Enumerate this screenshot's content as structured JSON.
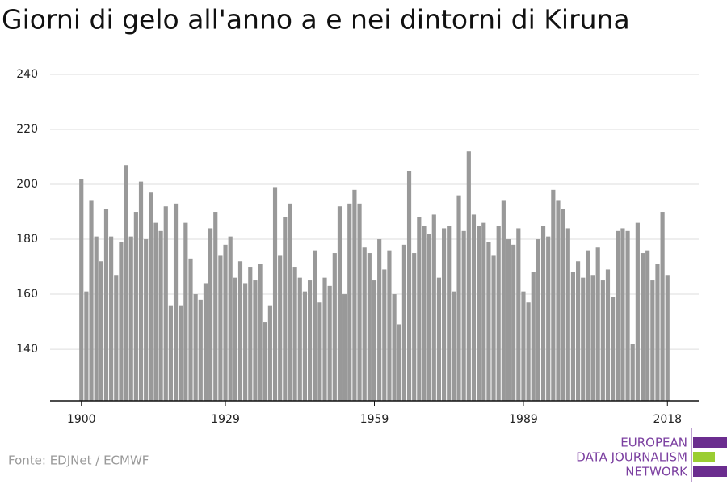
{
  "chart_data": {
    "type": "bar",
    "title": "Giorni di gelo all'anno a e nei dintorni di Kiruna",
    "source": "Fonte: EDJNet / ECMWF",
    "logo": [
      "EUROPEAN",
      "DATA JOURNALISM",
      "NETWORK"
    ],
    "color": "#999999",
    "grid": true,
    "x": [
      1900,
      1901,
      1902,
      1903,
      1904,
      1905,
      1906,
      1907,
      1908,
      1909,
      1910,
      1911,
      1912,
      1913,
      1914,
      1915,
      1916,
      1917,
      1918,
      1919,
      1920,
      1921,
      1922,
      1923,
      1924,
      1925,
      1926,
      1927,
      1928,
      1929,
      1930,
      1931,
      1932,
      1933,
      1934,
      1935,
      1936,
      1937,
      1938,
      1939,
      1940,
      1941,
      1942,
      1943,
      1944,
      1945,
      1946,
      1947,
      1948,
      1949,
      1950,
      1951,
      1952,
      1953,
      1954,
      1955,
      1956,
      1957,
      1958,
      1959,
      1960,
      1961,
      1962,
      1963,
      1964,
      1965,
      1966,
      1967,
      1968,
      1969,
      1970,
      1971,
      1972,
      1973,
      1974,
      1975,
      1976,
      1977,
      1978,
      1979,
      1980,
      1981,
      1982,
      1983,
      1984,
      1985,
      1986,
      1987,
      1988,
      1989,
      1990,
      1991,
      1992,
      1993,
      1994,
      1995,
      1996,
      1997,
      1998,
      1999,
      2000,
      2001,
      2002,
      2003,
      2004,
      2005,
      2006,
      2007,
      2008,
      2009,
      2010,
      2011,
      2012,
      2013,
      2014,
      2015,
      2016,
      2017,
      2018
    ],
    "values": [
      202,
      161,
      194,
      181,
      172,
      191,
      181,
      167,
      179,
      207,
      181,
      190,
      201,
      180,
      197,
      186,
      183,
      192,
      156,
      193,
      156,
      186,
      173,
      160,
      158,
      164,
      184,
      190,
      174,
      178,
      181,
      166,
      172,
      164,
      170,
      165,
      171,
      150,
      156,
      199,
      174,
      188,
      193,
      170,
      166,
      161,
      165,
      176,
      157,
      166,
      163,
      175,
      192,
      160,
      193,
      198,
      193,
      177,
      175,
      165,
      180,
      169,
      176,
      160,
      149,
      178,
      205,
      175,
      188,
      185,
      182,
      189,
      166,
      184,
      185,
      161,
      196,
      183,
      212,
      189,
      185,
      186,
      179,
      174,
      185,
      194,
      180,
      178,
      184,
      161,
      157,
      168,
      180,
      185,
      181,
      198,
      194,
      191,
      184,
      168,
      172,
      166,
      176,
      167,
      177,
      165,
      169,
      159,
      183,
      184,
      183,
      142,
      186,
      175,
      176,
      165,
      171,
      190,
      167
    ],
    "xlim": [
      1893.7,
      2024.3
    ],
    "xticks": [
      1900,
      1929,
      1959,
      1989,
      2018
    ],
    "ylim": [
      121.2,
      240
    ],
    "yticks": [
      140,
      160,
      180,
      200,
      220,
      240
    ]
  }
}
